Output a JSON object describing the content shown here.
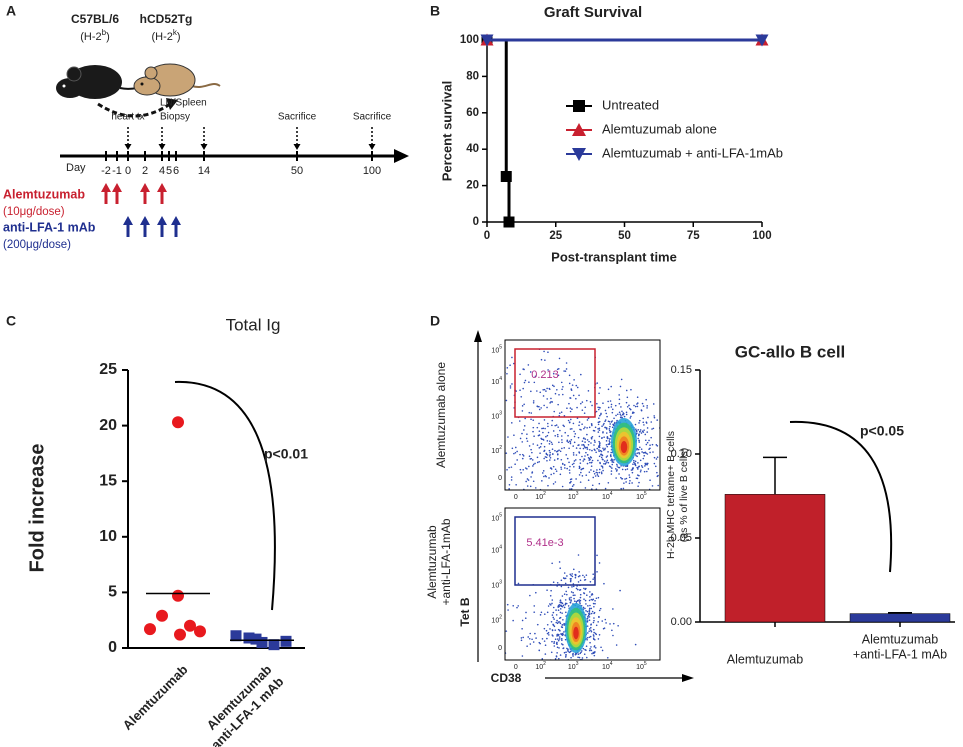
{
  "panel_labels": [
    "A",
    "B",
    "C",
    "D"
  ],
  "timeline": {
    "donor": {
      "name": "C57BL/6",
      "haplotype": [
        "(H-2",
        "b",
        ")"
      ]
    },
    "recipient": {
      "name": "hCD52Tg",
      "haplotype": [
        "(H-2",
        "k",
        ")"
      ]
    },
    "axis_label": "Day",
    "days": [
      "-2",
      "-1",
      "0",
      "2",
      "4",
      "5",
      "6",
      "14",
      "50",
      "100"
    ],
    "events": [
      {
        "day": "0",
        "label": [
          "heart tx"
        ]
      },
      {
        "day": "4",
        "label": [
          "LN/Spleen",
          "Biopsy"
        ]
      },
      {
        "day": "14"
      },
      {
        "day": "50",
        "label": [
          "Sacrifice"
        ]
      },
      {
        "day": "100",
        "label": [
          "Sacrifice"
        ]
      }
    ],
    "treatments": [
      {
        "name": "Alemtuzumab",
        "dose": "(10μg/dose)",
        "color": "#c8202f",
        "days": [
          "-2",
          "-1",
          "2",
          "4"
        ]
      },
      {
        "name": "anti-LFA-1 mAb",
        "dose": "(200μg/dose)",
        "color": "#1f2f8f",
        "days": [
          "0",
          "2",
          "4",
          "6"
        ]
      }
    ]
  },
  "flow": {
    "rows": [
      {
        "label": [
          "Alemtuzumab alone"
        ],
        "gate_value": "0.213",
        "gate_color": "#c8202f"
      },
      {
        "label": [
          "Alemtuzumab",
          "+anti-LFA-1mAb"
        ],
        "gate_value": "5.41e-3",
        "gate_color": "#1f2f8f"
      }
    ],
    "y_ticks": [
      {
        "base": "10",
        "exp": "5"
      },
      {
        "base": "10",
        "exp": "4"
      },
      {
        "base": "10",
        "exp": "3"
      },
      {
        "base": "10",
        "exp": "2"
      },
      {
        "base": "0"
      }
    ],
    "x_ticks": [
      {
        "base": "0"
      },
      {
        "base": "10",
        "exp": "2"
      },
      {
        "base": "10",
        "exp": "3"
      },
      {
        "base": "10",
        "exp": "4"
      },
      {
        "base": "10",
        "exp": "5"
      }
    ],
    "y_label": "Tet B",
    "x_label": "CD38"
  },
  "chart_data": [
    {
      "type": "line",
      "title": "Graft Survival",
      "x_label": "Post-transplant time",
      "y_label": "Percent survival",
      "xlim": [
        0,
        100
      ],
      "ylim": [
        0,
        100
      ],
      "xticks": [
        0,
        25,
        50,
        75,
        100
      ],
      "yticks": [
        0,
        20,
        40,
        60,
        80,
        100
      ],
      "step": true,
      "legend": "center",
      "series": [
        {
          "name": "Untreated",
          "color": "#000000",
          "marker": "square",
          "x": [
            0,
            7,
            8
          ],
          "values": [
            100,
            25,
            0
          ]
        },
        {
          "name": "Alemtuzumab alone",
          "color": "#c8202f",
          "marker": "triangle-up",
          "x": [
            0,
            100
          ],
          "values": [
            100,
            100
          ]
        },
        {
          "name": "Alemtuzumab + anti-LFA-1mAb",
          "color": "#2b3a9a",
          "marker": "triangle-down",
          "x": [
            0,
            100
          ],
          "values": [
            100,
            100
          ]
        }
      ]
    },
    {
      "type": "dot",
      "title": "Total Ig",
      "y_label": "Fold increase",
      "annotation": "p<0.01",
      "categories": [
        [
          "Alemtuzumab"
        ],
        [
          "Alemtuzumab",
          "+anti-LFA-1 mAb"
        ]
      ],
      "ylim": [
        0,
        25
      ],
      "yticks": [
        0,
        5,
        10,
        15,
        20,
        25
      ],
      "groups": [
        {
          "color": "#e8191e",
          "marker": "circle",
          "values": [
            20.3,
            4.7,
            2.9,
            1.7,
            1.2,
            1.5,
            2.0
          ],
          "mean": 4.9
        },
        {
          "color": "#2b3a9a",
          "marker": "square",
          "values": [
            1.1,
            0.9,
            0.5,
            0.3,
            0.6,
            0.8
          ],
          "mean": 0.7
        }
      ]
    },
    {
      "type": "bar",
      "title": "GC-allo B cell",
      "y_label": [
        "H-2b MHC tetrame+ B cells",
        "(as % of live B cells)"
      ],
      "annotation": "p<0.05",
      "categories": [
        [
          "Alemtuzumab"
        ],
        [
          "Alemtuzumab",
          "+anti-LFA-1 mAb"
        ]
      ],
      "values": [
        0.076,
        0.005
      ],
      "errors": [
        0.022,
        0.0005
      ],
      "colors": [
        "#c0202a",
        "#2b3a9a"
      ],
      "ylim": [
        0,
        0.15
      ],
      "yticks": [
        {
          "value": 0,
          "label": "0.00"
        },
        {
          "value": 0.05,
          "label": "0.05"
        },
        {
          "value": 0.1,
          "label": "0.10"
        },
        {
          "value": 0.15,
          "label": "0.15"
        }
      ]
    }
  ]
}
